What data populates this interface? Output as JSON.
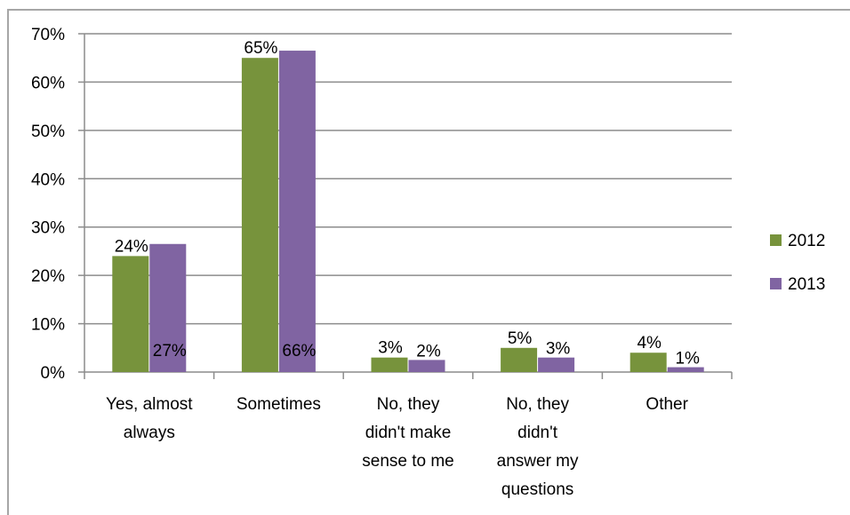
{
  "chart_data": {
    "type": "bar",
    "title": "",
    "xlabel": "",
    "ylabel": "",
    "ylim": [
      0,
      0.7
    ],
    "y_ticks": [
      "0%",
      "10%",
      "20%",
      "30%",
      "40%",
      "50%",
      "60%",
      "70%"
    ],
    "y_tick_values": [
      0,
      0.1,
      0.2,
      0.3,
      0.4,
      0.5,
      0.6,
      0.7
    ],
    "grid": true,
    "legend_position": "right",
    "categories": [
      [
        "Yes, almost",
        "always"
      ],
      [
        "Sometimes"
      ],
      [
        "No, they",
        "didn't make",
        "sense to me"
      ],
      [
        "No, they",
        "didn't",
        "answer my",
        "questions"
      ],
      [
        "Other"
      ]
    ],
    "series": [
      {
        "name": "2012",
        "color": "#77933c",
        "values": [
          0.24,
          0.65,
          0.03,
          0.05,
          0.04
        ],
        "labels": [
          "24%",
          "65%",
          "3%",
          "5%",
          "4%"
        ]
      },
      {
        "name": "2013",
        "color": "#8064a2",
        "values": [
          0.265,
          0.665,
          0.025,
          0.03,
          0.01
        ],
        "labels": [
          "27%",
          "66%",
          "2%",
          "3%",
          "1%"
        ]
      }
    ]
  }
}
